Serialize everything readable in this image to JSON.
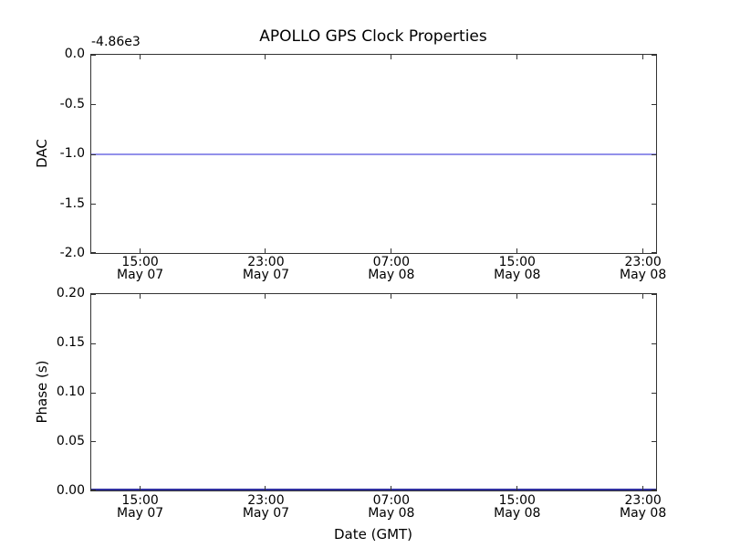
{
  "figure": {
    "title": "APOLLO GPS Clock Properties",
    "background": "#ffffff",
    "spine_color": "#333333"
  },
  "chart_data": [
    {
      "type": "line",
      "title": "APOLLO GPS Clock Properties",
      "ylabel": "DAC",
      "y_offset_text": "-4.86e3",
      "ylim": [
        -2.0,
        0.0
      ],
      "ytick_labels": [
        "0.0",
        "-0.5",
        "-1.0",
        "-1.5",
        "-2.0"
      ],
      "xtick_labels": [
        [
          "15:00",
          "May 07"
        ],
        [
          "23:00",
          "May 07"
        ],
        [
          "07:00",
          "May 08"
        ],
        [
          "15:00",
          "May 08"
        ],
        [
          "23:00",
          "May 08"
        ]
      ],
      "series": [
        {
          "name": "DAC",
          "color": "#9391ea",
          "constant_y": -1.0
        }
      ],
      "grid": false,
      "legend_position": "none"
    },
    {
      "type": "line",
      "ylabel": "Phase (s)",
      "xlabel": "Date (GMT)",
      "ylim": [
        0.0,
        0.2
      ],
      "ytick_labels": [
        "0.20",
        "0.15",
        "0.10",
        "0.05",
        "0.00"
      ],
      "xtick_labels": [
        [
          "15:00",
          "May 07"
        ],
        [
          "23:00",
          "May 07"
        ],
        [
          "07:00",
          "May 08"
        ],
        [
          "15:00",
          "May 08"
        ],
        [
          "23:00",
          "May 08"
        ]
      ],
      "series": [
        {
          "name": "Phase",
          "color": "#3030a0",
          "constant_y": 0.0
        }
      ],
      "grid": false,
      "legend_position": "none"
    }
  ]
}
